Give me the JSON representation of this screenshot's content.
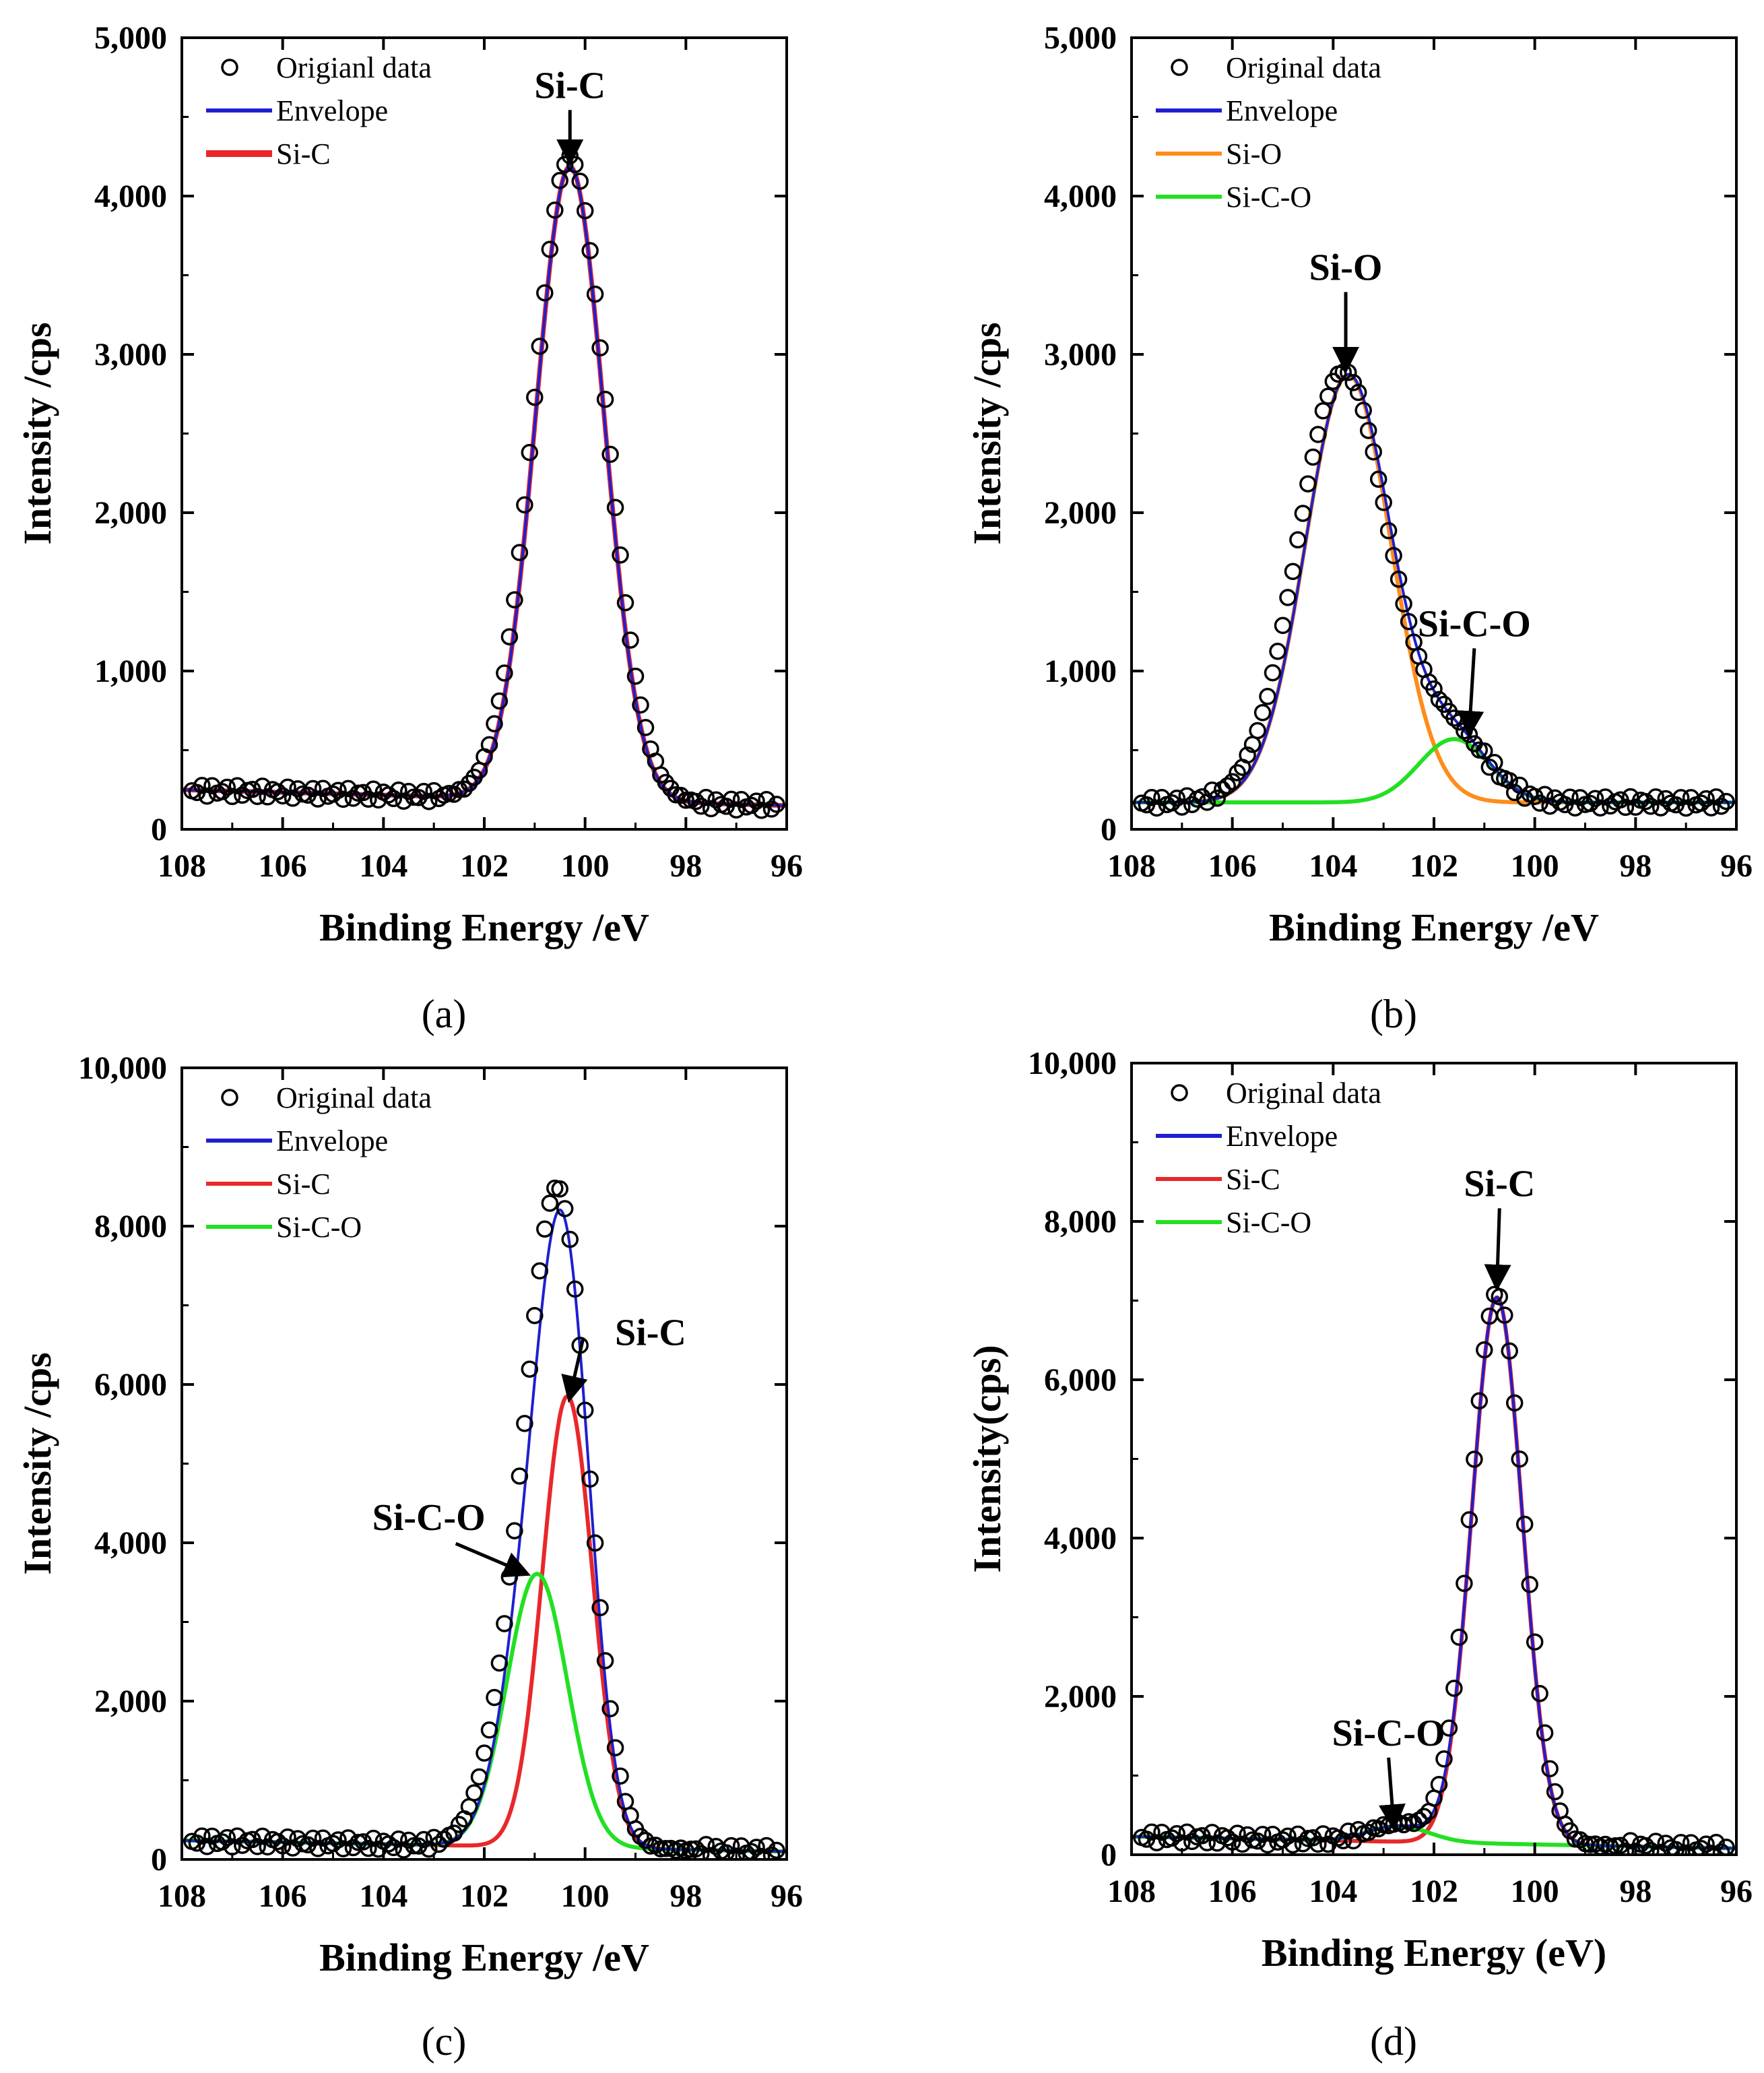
{
  "figure_caption_labels": [
    "(a)",
    "(b)",
    "(c)",
    "(d)"
  ],
  "chart_data": [
    {
      "type": "line",
      "panel_label": "(a)",
      "xlabel": "Binding Energy /eV",
      "ylabel": "Intensity /cps",
      "xlim": [
        108,
        96
      ],
      "ylim": [
        0,
        5000
      ],
      "x_ticks": [
        108,
        106,
        104,
        102,
        100,
        98,
        96
      ],
      "x_tick_labels": [
        "108",
        "106",
        "104",
        "102",
        "100",
        "98",
        "96"
      ],
      "y_ticks": [
        0,
        1000,
        2000,
        3000,
        4000,
        5000
      ],
      "y_tick_labels": [
        "0",
        "1,000",
        "2,000",
        "3,000",
        "4,000",
        "5,000"
      ],
      "legend": [
        "Origianl data",
        "Envelope",
        "Si-C"
      ],
      "baseline": {
        "start": 250,
        "end": 150
      },
      "data_points": {
        "x_start": 107.8,
        "x_end": 96.2,
        "step": 0.1
      },
      "series": [
        {
          "name": "Origianl data",
          "style": "markers",
          "color": "#000000",
          "peaks": [
            {
              "center": 100.3,
              "amplitude": 4060,
              "sigma": 0.72
            }
          ]
        },
        {
          "name": "Envelope",
          "style": "line",
          "color": "#1f1fd0",
          "peaks": [
            {
              "center": 100.3,
              "amplitude": 4000,
              "sigma": 0.68
            }
          ]
        },
        {
          "name": "Si-C",
          "style": "line",
          "color": "#e8282a",
          "peaks": [
            {
              "center": 100.3,
              "amplitude": 4000,
              "sigma": 0.68
            }
          ]
        }
      ],
      "annotations": [
        {
          "text": "Si-C",
          "x": 100.3,
          "y": 4620,
          "arrow_to": [
            100.3,
            4230
          ]
        }
      ]
    },
    {
      "type": "line",
      "panel_label": "(b)",
      "xlabel": "Binding Energy /eV",
      "ylabel": "Intensity /cps",
      "xlim": [
        108,
        96
      ],
      "ylim": [
        0,
        5000
      ],
      "x_ticks": [
        108,
        106,
        104,
        102,
        100,
        98,
        96
      ],
      "x_tick_labels": [
        "108",
        "106",
        "104",
        "102",
        "100",
        "98",
        "96"
      ],
      "y_ticks": [
        0,
        1000,
        2000,
        3000,
        4000,
        5000
      ],
      "y_tick_labels": [
        "0",
        "1,000",
        "2,000",
        "3,000",
        "4,000",
        "5,000"
      ],
      "legend": [
        "Original data",
        "Envelope",
        "Si-O",
        "Si-C-O"
      ],
      "baseline": {
        "start": 170,
        "end": 170
      },
      "data_points": {
        "x_start": 107.8,
        "x_end": 96.2,
        "step": 0.1
      },
      "series": [
        {
          "name": "Original data",
          "style": "markers",
          "color": "#000000",
          "peaks": [
            {
              "center": 103.8,
              "amplitude": 2720,
              "sigma": 0.9
            },
            {
              "center": 101.6,
              "amplitude": 400,
              "sigma": 0.7
            }
          ]
        },
        {
          "name": "Envelope",
          "style": "line",
          "color": "#1f1fd0",
          "peaks": [
            {
              "center": 103.7,
              "amplitude": 2700,
              "sigma": 0.85
            },
            {
              "center": 101.6,
              "amplitude": 400,
              "sigma": 0.7
            }
          ]
        },
        {
          "name": "Si-O",
          "style": "line",
          "color": "#ff8c1a",
          "peaks": [
            {
              "center": 103.7,
              "amplitude": 2700,
              "sigma": 0.85
            }
          ]
        },
        {
          "name": "Si-C-O",
          "style": "line",
          "color": "#22e022",
          "peaks": [
            {
              "center": 101.6,
              "amplitude": 400,
              "sigma": 0.7
            }
          ]
        }
      ],
      "annotations": [
        {
          "text": "Si-O",
          "x": 103.75,
          "y": 3470,
          "arrow_to": [
            103.75,
            2920
          ]
        },
        {
          "text": "Si-C-O",
          "x": 101.2,
          "y": 1220,
          "arrow_to": [
            101.3,
            620
          ]
        }
      ]
    },
    {
      "type": "line",
      "panel_label": "(c)",
      "xlabel": "Binding Energy /eV",
      "ylabel": "Intensity /cps",
      "xlim": [
        108,
        96
      ],
      "ylim": [
        0,
        10000
      ],
      "x_ticks": [
        108,
        106,
        104,
        102,
        100,
        98,
        96
      ],
      "x_tick_labels": [
        "108",
        "106",
        "104",
        "102",
        "100",
        "98",
        "96"
      ],
      "y_ticks": [
        0,
        2000,
        4000,
        6000,
        8000,
        10000
      ],
      "y_tick_labels": [
        "0",
        "2,000",
        "4,000",
        "6,000",
        "8,000",
        "10,000"
      ],
      "legend": [
        "Original data",
        "Envelope",
        "Si-C",
        "Si-C-O"
      ],
      "baseline": {
        "start": 240,
        "end": 100
      },
      "data_points": {
        "x_start": 107.8,
        "x_end": 96.2,
        "step": 0.1
      },
      "series": [
        {
          "name": "Original data",
          "style": "markers",
          "color": "#000000",
          "peaks": [
            {
              "center": 100.4,
              "amplitude": 5800,
              "sigma": 0.55
            },
            {
              "center": 101.0,
              "amplitude": 3500,
              "sigma": 0.65
            }
          ]
        },
        {
          "name": "Envelope",
          "style": "line",
          "color": "#1f1fd0",
          "peaks": [
            {
              "center": 100.35,
              "amplitude": 5700,
              "sigma": 0.5
            },
            {
              "center": 100.95,
              "amplitude": 3450,
              "sigma": 0.6
            }
          ]
        },
        {
          "name": "Si-C",
          "style": "line",
          "color": "#e8282a",
          "peaks": [
            {
              "center": 100.35,
              "amplitude": 5700,
              "sigma": 0.5
            }
          ]
        },
        {
          "name": "Si-C-O",
          "style": "line",
          "color": "#22e022",
          "peaks": [
            {
              "center": 100.95,
              "amplitude": 3450,
              "sigma": 0.6
            }
          ]
        }
      ],
      "annotations": [
        {
          "text": "Si-C",
          "x": 98.7,
          "y": 6500,
          "arrow_to": [
            100.3,
            5850
          ]
        },
        {
          "text": "Si-C-O",
          "x": 103.1,
          "y": 4160,
          "arrow_to": [
            101.2,
            3620
          ]
        }
      ]
    },
    {
      "type": "line",
      "panel_label": "(d)",
      "xlabel": "Binding Energy (eV)",
      "ylabel": "Intensity(cps)",
      "xlim": [
        108,
        96
      ],
      "ylim": [
        0,
        10000
      ],
      "x_ticks": [
        108,
        106,
        104,
        102,
        100,
        98,
        96
      ],
      "x_tick_labels": [
        "108",
        "106",
        "104",
        "102",
        "100",
        "98",
        "96"
      ],
      "y_ticks": [
        0,
        2000,
        4000,
        6000,
        8000,
        10000
      ],
      "y_tick_labels": [
        "0",
        "2,000",
        "4,000",
        "6,000",
        "8,000",
        "10,000"
      ],
      "legend": [
        "Original data",
        "Envelope",
        "Si-C",
        "Si-C-O"
      ],
      "baseline": {
        "start": 230,
        "end": 80
      },
      "data_points": {
        "x_start": 107.8,
        "x_end": 96.2,
        "step": 0.1
      },
      "series": [
        {
          "name": "Original data",
          "style": "markers",
          "color": "#000000",
          "peaks": [
            {
              "center": 100.75,
              "amplitude": 6950,
              "sigma": 0.53
            },
            {
              "center": 102.7,
              "amplitude": 220,
              "sigma": 0.6
            }
          ]
        },
        {
          "name": "Envelope",
          "style": "line",
          "color": "#1f1fd0",
          "peaks": [
            {
              "center": 100.75,
              "amplitude": 6900,
              "sigma": 0.5
            },
            {
              "center": 102.7,
              "amplitude": 200,
              "sigma": 0.6
            }
          ]
        },
        {
          "name": "Si-C",
          "style": "line",
          "color": "#e8282a",
          "peaks": [
            {
              "center": 100.75,
              "amplitude": 6900,
              "sigma": 0.5
            }
          ]
        },
        {
          "name": "Si-C-O",
          "style": "line",
          "color": "#22e022",
          "peaks": [
            {
              "center": 102.7,
              "amplitude": 200,
              "sigma": 0.6
            }
          ]
        }
      ],
      "annotations": [
        {
          "text": "Si-C",
          "x": 100.7,
          "y": 8320,
          "arrow_to": [
            100.75,
            7200
          ]
        },
        {
          "text": "Si-C-O",
          "x": 102.9,
          "y": 1380,
          "arrow_to": [
            102.8,
            380
          ]
        }
      ]
    }
  ]
}
